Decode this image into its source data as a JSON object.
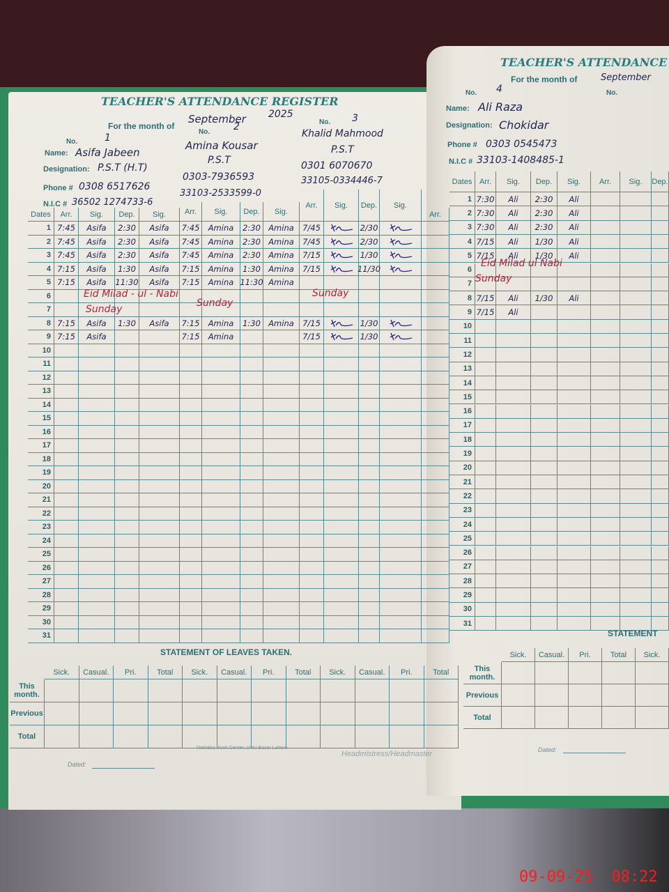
{
  "register_title": "TEACHER'S ATTENDANCE REGISTER",
  "right_title": "TEACHER'S ATTENDANCE",
  "month_label": "For the month of",
  "month_value": "September",
  "year_value": "2025",
  "no_label": "No.",
  "labels": {
    "name": "Name:",
    "designation": "Designation:",
    "phone": "Phone #",
    "nic": "N.I.C #",
    "dates": "Dates"
  },
  "column_headers": [
    "Arr.",
    "Sig.",
    "Dep.",
    "Sig."
  ],
  "teachers": [
    {
      "no": "1",
      "name": "Asifa Jabeen",
      "designation": "P.S.T (H.T)",
      "phone": "0308 6517626",
      "nic": "36502 1274733-6",
      "rows": {
        "1": [
          "7:45",
          "Asifa",
          "2:30",
          "Asifa"
        ],
        "2": [
          "7:45",
          "Asifa",
          "2:30",
          "Asifa"
        ],
        "3": [
          "7:45",
          "Asifa",
          "2:30",
          "Asifa"
        ],
        "4": [
          "7:15",
          "Asifa",
          "1:30",
          "Asifa"
        ],
        "5": [
          "7:15",
          "Asifa",
          "11:30",
          "Asifa"
        ],
        "8": [
          "7:15",
          "Asifa",
          "1:30",
          "Asifa"
        ],
        "9": [
          "7:15",
          "Asifa",
          "",
          ""
        ]
      }
    },
    {
      "no": "2",
      "name": "Amina Kousar",
      "designation": "P.S.T",
      "phone": "0303-7936593",
      "nic": "33103-2533599-0",
      "rows": {
        "1": [
          "7:45",
          "Amina",
          "2:30",
          "Amina"
        ],
        "2": [
          "7:45",
          "Amina",
          "2:30",
          "Amina"
        ],
        "3": [
          "7:45",
          "Amina",
          "2:30",
          "Amina"
        ],
        "4": [
          "7:15",
          "Amina",
          "1:30",
          "Amina"
        ],
        "5": [
          "7:15",
          "Amina",
          "11:30",
          "Amina"
        ],
        "8": [
          "7:15",
          "Amina",
          "1:30",
          "Amina"
        ],
        "9": [
          "7:15",
          "Amina",
          "",
          ""
        ]
      }
    },
    {
      "no": "3",
      "name": "Khalid Mahmood",
      "designation": "P.S.T",
      "phone": "0301 6070670",
      "nic": "33105-0334446-7",
      "rows": {
        "1": [
          "7/45",
          "~",
          "2/30",
          "~"
        ],
        "2": [
          "7/45",
          "~",
          "2/30",
          "~"
        ],
        "3": [
          "7/15",
          "~",
          "1/30",
          "~"
        ],
        "4": [
          "7/15",
          "~",
          "11/30",
          "~"
        ],
        "8": [
          "7/15",
          "~",
          "1/30",
          "~"
        ],
        "9": [
          "7/15",
          "~",
          "1/30",
          "~"
        ]
      }
    },
    {
      "no": "4",
      "name": "Ali Raza",
      "designation": "Chokidar",
      "phone": "0303 0545473",
      "nic": "33103-1408485-1",
      "rows": {
        "1": [
          "7:30",
          "Ali",
          "2:30",
          "Ali"
        ],
        "2": [
          "7:30",
          "Ali",
          "2:30",
          "Ali"
        ],
        "3": [
          "7:30",
          "Ali",
          "2:30",
          "Ali"
        ],
        "4": [
          "7/15",
          "Ali",
          "1/30",
          "Ali"
        ],
        "5": [
          "7/15",
          "Ali",
          "1/30",
          "Ali"
        ],
        "8": [
          "7/15",
          "Ali",
          "1/30",
          "Ali"
        ],
        "9": [
          "7/15",
          "Ali",
          "",
          ""
        ]
      }
    }
  ],
  "notes": {
    "holiday_left": "Eid  Milad - ul -  Nabi",
    "holiday_right": "Eid Milad ul Nabi",
    "sunday": "Sunday"
  },
  "leaves": {
    "title": "STATEMENT OF LEAVES TAKEN.",
    "right_title": "STATEMENT",
    "columns": [
      "Sick.",
      "Casual.",
      "Pri.",
      "Total"
    ],
    "rows": [
      "This month.",
      "Previous",
      "Total"
    ]
  },
  "footer": {
    "dated": "Dated:",
    "signatory": "Headmistress/Headmaster",
    "publisher": "Maktaba Book Center, Urdu Bazar Lahore"
  },
  "timestamp": "09-09-25  08:22",
  "colors": {
    "print": "#2c6e74",
    "ink": "#1f2450",
    "holiday_ink": "#b0253a",
    "timestamp": "#ff1a1a"
  }
}
